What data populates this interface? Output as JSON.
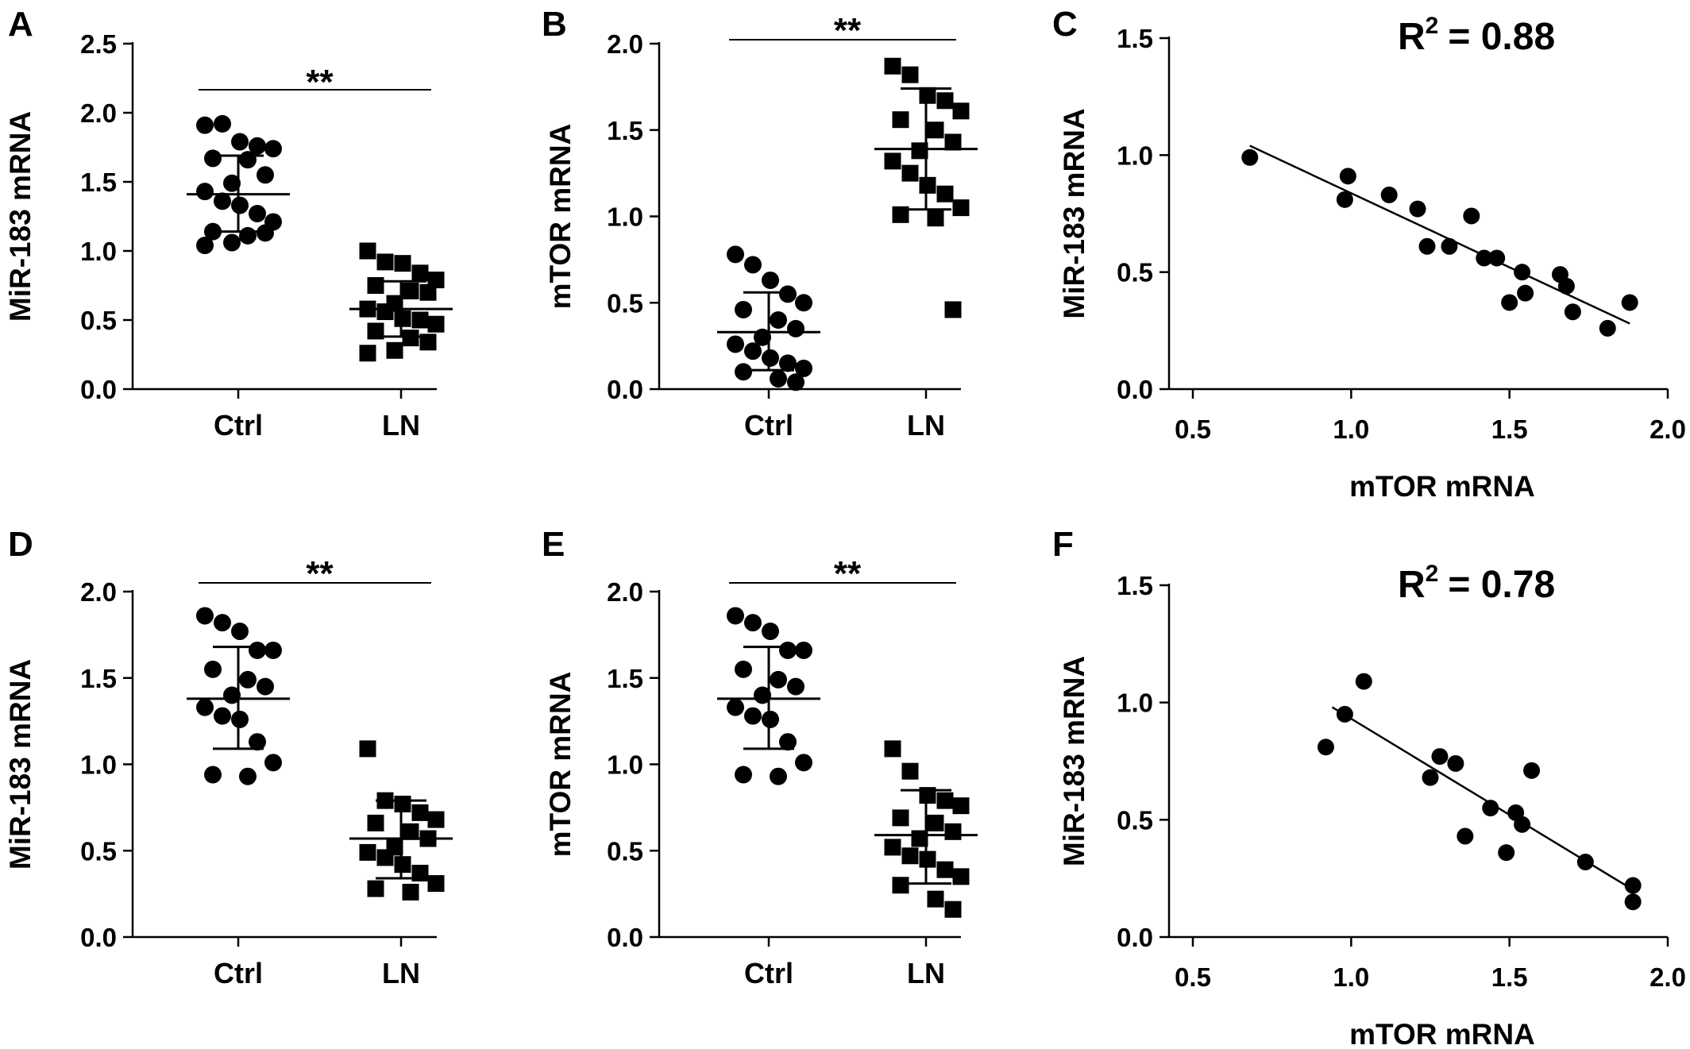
{
  "figure": {
    "panels": [
      {
        "letter": "A"
      },
      {
        "letter": "B"
      },
      {
        "letter": "C"
      },
      {
        "letter": "D"
      },
      {
        "letter": "E"
      },
      {
        "letter": "F"
      }
    ]
  },
  "chart_data": [
    {
      "panel": "A",
      "type": "scatter",
      "subtype": "dot-plot-mean-sd",
      "ylabel": "MiR-183 mRNA",
      "ylim": [
        0,
        2.5
      ],
      "yticks": [
        "0.0",
        "0.5",
        "1.0",
        "1.5",
        "2.0",
        "2.5"
      ],
      "categories": [
        "Ctrl",
        "LN"
      ],
      "significance": "**",
      "groups": [
        {
          "category": "Ctrl",
          "marker": "circle",
          "mean": 1.41,
          "sd_upper": 1.69,
          "sd_lower": 1.14,
          "values": [
            1.91,
            1.92,
            1.79,
            1.76,
            1.74,
            1.67,
            1.66,
            1.55,
            1.49,
            1.43,
            1.36,
            1.33,
            1.27,
            1.21,
            1.14,
            1.11,
            1.13,
            1.06,
            1.04
          ]
        },
        {
          "category": "LN",
          "marker": "square",
          "mean": 0.58,
          "sd_upper": 0.78,
          "sd_lower": 0.38,
          "values": [
            1.0,
            0.92,
            0.91,
            0.84,
            0.79,
            0.75,
            0.71,
            0.7,
            0.62,
            0.58,
            0.56,
            0.51,
            0.5,
            0.47,
            0.42,
            0.37,
            0.34,
            0.28,
            0.26
          ]
        }
      ]
    },
    {
      "panel": "B",
      "type": "scatter",
      "subtype": "dot-plot-mean-sd",
      "ylabel": "mTOR mRNA",
      "ylim": [
        0,
        2.0
      ],
      "yticks": [
        "0.0",
        "0.5",
        "1.0",
        "1.5",
        "2.0"
      ],
      "categories": [
        "Ctrl",
        "LN"
      ],
      "significance": "**",
      "groups": [
        {
          "category": "Ctrl",
          "marker": "circle",
          "mean": 0.33,
          "sd_upper": 0.56,
          "sd_lower": 0.11,
          "values": [
            0.78,
            0.72,
            0.63,
            0.55,
            0.5,
            0.46,
            0.4,
            0.35,
            0.3,
            0.26,
            0.22,
            0.18,
            0.15,
            0.12,
            0.1,
            0.06,
            0.04
          ]
        },
        {
          "category": "LN",
          "marker": "square",
          "mean": 1.39,
          "sd_upper": 1.74,
          "sd_lower": 1.04,
          "values": [
            1.87,
            1.82,
            1.7,
            1.67,
            1.61,
            1.56,
            1.5,
            1.43,
            1.38,
            1.32,
            1.25,
            1.18,
            1.13,
            1.05,
            1.01,
            0.99,
            0.46
          ]
        }
      ]
    },
    {
      "panel": "C",
      "type": "scatter",
      "subtype": "regression",
      "xlabel": "mTOR mRNA",
      "ylabel": "MiR-183 mRNA",
      "xlim": [
        0.5,
        2.0
      ],
      "ylim": [
        0,
        1.5
      ],
      "xticks": [
        "0.5",
        "1.0",
        "1.5",
        "2.0"
      ],
      "yticks": [
        "0.0",
        "0.5",
        "1.0",
        "1.5"
      ],
      "r2_prefix": "R",
      "r2_sup": "2",
      "r2_value": "= 0.88",
      "fit": {
        "x": [
          0.68,
          1.88
        ],
        "y": [
          1.04,
          0.28
        ]
      },
      "points": [
        {
          "x": 0.68,
          "y": 0.99
        },
        {
          "x": 0.99,
          "y": 0.91
        },
        {
          "x": 0.98,
          "y": 0.81
        },
        {
          "x": 1.12,
          "y": 0.83
        },
        {
          "x": 1.21,
          "y": 0.77
        },
        {
          "x": 1.24,
          "y": 0.61
        },
        {
          "x": 1.31,
          "y": 0.61
        },
        {
          "x": 1.38,
          "y": 0.74
        },
        {
          "x": 1.42,
          "y": 0.56
        },
        {
          "x": 1.46,
          "y": 0.56
        },
        {
          "x": 1.54,
          "y": 0.5
        },
        {
          "x": 1.55,
          "y": 0.41
        },
        {
          "x": 1.5,
          "y": 0.37
        },
        {
          "x": 1.66,
          "y": 0.49
        },
        {
          "x": 1.68,
          "y": 0.44
        },
        {
          "x": 1.7,
          "y": 0.33
        },
        {
          "x": 1.81,
          "y": 0.26
        },
        {
          "x": 1.88,
          "y": 0.37
        }
      ]
    },
    {
      "panel": "D",
      "type": "scatter",
      "subtype": "dot-plot-mean-sd",
      "ylabel": "MiR-183 mRNA",
      "ylim": [
        0,
        2.0
      ],
      "yticks": [
        "0.0",
        "0.5",
        "1.0",
        "1.5",
        "2.0"
      ],
      "categories": [
        "Ctrl",
        "LN"
      ],
      "significance": "**",
      "groups": [
        {
          "category": "Ctrl",
          "marker": "circle",
          "mean": 1.38,
          "sd_upper": 1.68,
          "sd_lower": 1.09,
          "values": [
            1.86,
            1.82,
            1.77,
            1.66,
            1.66,
            1.55,
            1.49,
            1.45,
            1.4,
            1.33,
            1.28,
            1.26,
            1.13,
            1.01,
            0.94,
            0.93
          ]
        },
        {
          "category": "LN",
          "marker": "square",
          "mean": 0.57,
          "sd_upper": 0.79,
          "sd_lower": 0.34,
          "values": [
            1.09,
            0.79,
            0.77,
            0.72,
            0.68,
            0.66,
            0.61,
            0.57,
            0.52,
            0.49,
            0.46,
            0.42,
            0.37,
            0.31,
            0.28,
            0.26
          ]
        }
      ]
    },
    {
      "panel": "E",
      "type": "scatter",
      "subtype": "dot-plot-mean-sd",
      "ylabel": "mTOR mRNA",
      "ylim": [
        0,
        2.0
      ],
      "yticks": [
        "0.0",
        "0.5",
        "1.0",
        "1.5",
        "2.0"
      ],
      "categories": [
        "Ctrl",
        "LN"
      ],
      "significance": "**",
      "groups": [
        {
          "category": "Ctrl",
          "marker": "circle",
          "mean": 1.38,
          "sd_upper": 1.68,
          "sd_lower": 1.09,
          "values": [
            1.86,
            1.82,
            1.77,
            1.66,
            1.66,
            1.55,
            1.49,
            1.45,
            1.4,
            1.33,
            1.28,
            1.26,
            1.13,
            1.01,
            0.94,
            0.93
          ]
        },
        {
          "category": "LN",
          "marker": "square",
          "mean": 0.59,
          "sd_upper": 0.85,
          "sd_lower": 0.31,
          "values": [
            1.09,
            0.96,
            0.82,
            0.79,
            0.76,
            0.69,
            0.66,
            0.61,
            0.57,
            0.52,
            0.47,
            0.45,
            0.39,
            0.35,
            0.3,
            0.22,
            0.16
          ]
        }
      ]
    },
    {
      "panel": "F",
      "type": "scatter",
      "subtype": "regression",
      "xlabel": "mTOR mRNA",
      "ylabel": "MiR-183 mRNA",
      "xlim": [
        0.5,
        2.0
      ],
      "ylim": [
        0,
        1.5
      ],
      "xticks": [
        "0.5",
        "1.0",
        "1.5",
        "2.0"
      ],
      "yticks": [
        "0.0",
        "0.5",
        "1.0",
        "1.5"
      ],
      "r2_prefix": "R",
      "r2_sup": "2",
      "r2_value": "= 0.78",
      "fit": {
        "x": [
          0.94,
          1.88
        ],
        "y": [
          0.98,
          0.21
        ]
      },
      "points": [
        {
          "x": 0.92,
          "y": 0.81
        },
        {
          "x": 0.98,
          "y": 0.95
        },
        {
          "x": 1.04,
          "y": 1.09
        },
        {
          "x": 1.25,
          "y": 0.68
        },
        {
          "x": 1.28,
          "y": 0.77
        },
        {
          "x": 1.33,
          "y": 0.74
        },
        {
          "x": 1.36,
          "y": 0.43
        },
        {
          "x": 1.44,
          "y": 0.55
        },
        {
          "x": 1.49,
          "y": 0.36
        },
        {
          "x": 1.52,
          "y": 0.53
        },
        {
          "x": 1.54,
          "y": 0.48
        },
        {
          "x": 1.57,
          "y": 0.71
        },
        {
          "x": 1.74,
          "y": 0.32
        },
        {
          "x": 1.89,
          "y": 0.22
        },
        {
          "x": 1.89,
          "y": 0.15
        }
      ]
    }
  ]
}
